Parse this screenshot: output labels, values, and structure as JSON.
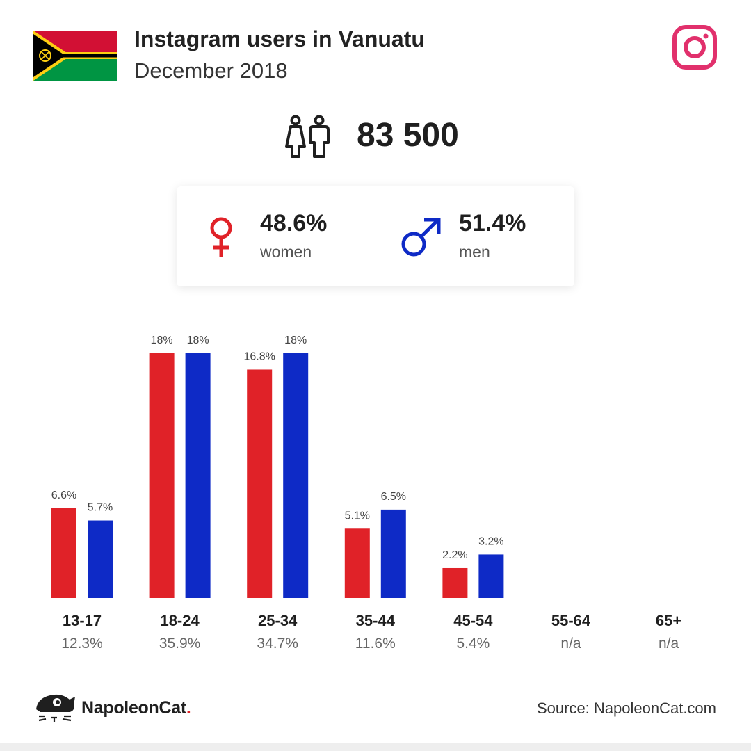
{
  "header": {
    "title": "Instagram users in Vanuatu",
    "subtitle": "December 2018",
    "flag_icon": "vanuatu-flag",
    "app_icon": "instagram-icon"
  },
  "total": {
    "icon": "users-icon",
    "value": "83 500"
  },
  "gender": {
    "women": {
      "pct": "48.6%",
      "label": "women",
      "icon": "female-symbol-icon",
      "color": "#e02228"
    },
    "men": {
      "pct": "51.4%",
      "label": "men",
      "icon": "male-symbol-icon",
      "color": "#0e2ac6"
    }
  },
  "chart_data": {
    "type": "bar",
    "categories": [
      "13-17",
      "18-24",
      "25-34",
      "35-44",
      "45-54",
      "55-64",
      "65+"
    ],
    "category_totals": [
      "12.3%",
      "35.9%",
      "34.7%",
      "11.6%",
      "5.4%",
      "n/a",
      "n/a"
    ],
    "series": [
      {
        "values": [
          6.6,
          18,
          16.8,
          5.1,
          2.2,
          null,
          null
        ],
        "labels": [
          "6.6%",
          "18%",
          "16.8%",
          "5.1%",
          "2.2%",
          "",
          ""
        ],
        "color": "#e02228"
      },
      {
        "values": [
          5.7,
          18,
          18,
          6.5,
          3.2,
          null,
          null
        ],
        "labels": [
          "5.7%",
          "18%",
          "18%",
          "6.5%",
          "3.2%",
          "",
          ""
        ],
        "color": "#0e2ac6"
      }
    ],
    "ylim": [
      0,
      18
    ],
    "grid": false,
    "legend": "none"
  },
  "footer": {
    "brand": "NapoleonCat",
    "brand_dot": ".",
    "source": "Source: NapoleonCat.com",
    "logo_icon": "napoleoncat-logo-icon"
  }
}
